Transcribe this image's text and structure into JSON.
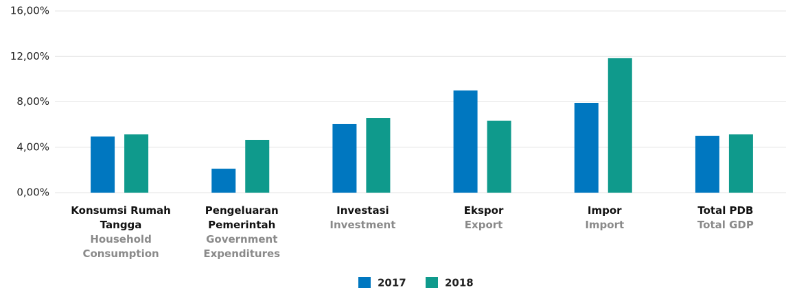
{
  "chart_data": {
    "type": "bar",
    "categories": [
      "Konsumsi Rumah Tangga",
      "Pengeluaran Pemerintah",
      "Investasi",
      "Ekspor",
      "Impor",
      "Total PDB"
    ],
    "categories_en": [
      "Household Consumption",
      "Government Expenditures",
      "Investment",
      "Export",
      "Import",
      "Total GDP"
    ],
    "series": [
      {
        "name": "2017",
        "color": "#0077c0",
        "values": [
          4.94,
          2.11,
          6.04,
          9.0,
          7.91,
          5.01
        ]
      },
      {
        "name": "2018",
        "color": "#0f9a8c",
        "values": [
          5.13,
          4.65,
          6.58,
          6.34,
          11.84,
          5.13
        ]
      }
    ],
    "ylim": [
      0,
      16
    ],
    "yticks": [
      {
        "value": 0,
        "label": "0,00%"
      },
      {
        "value": 4,
        "label": "4,00%"
      },
      {
        "value": 8,
        "label": "8,00%"
      },
      {
        "value": 12,
        "label": "12,00%"
      },
      {
        "value": 16,
        "label": "16,00%"
      }
    ],
    "grid": true,
    "legend": "bottom"
  }
}
